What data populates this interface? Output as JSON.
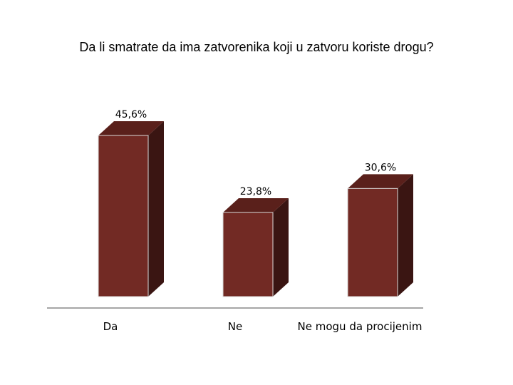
{
  "chart_data": {
    "type": "bar",
    "title": "Da li smatrate da ima zatvorenika koji u zatvoru koriste drogu?",
    "categories": [
      "Da",
      "Ne",
      "Ne mogu da procijenim"
    ],
    "values": [
      45.6,
      23.8,
      30.6
    ],
    "value_labels": [
      "45,6%",
      "23,8%",
      "30,6%"
    ],
    "xlabel": "",
    "ylabel": "",
    "ylim": [
      0,
      50
    ],
    "grid": false,
    "legend": "none",
    "style": "3d-column",
    "colors": {
      "front": "#722a24",
      "side": "#3a1512",
      "top": "#5a201b",
      "axis": "#a6a6a6"
    }
  }
}
